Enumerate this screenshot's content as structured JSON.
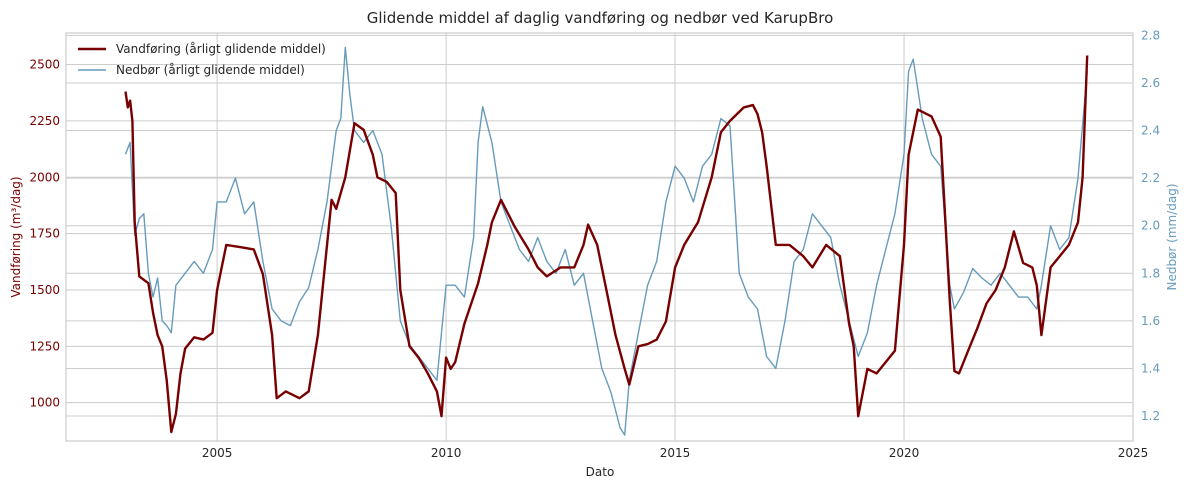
{
  "chart_data": {
    "type": "line",
    "title": "Glidende middel af daglig vandføring og nedbør ved KarupBro",
    "xlabel": "Dato",
    "ylabel_left": "Vandføring (m³/dag)",
    "ylabel_right": "Nedbør (mm/dag)",
    "x_ticks": [
      "2005",
      "2010",
      "2015",
      "2020",
      "2025"
    ],
    "y_left_ticks": [
      "1000",
      "1250",
      "1500",
      "1750",
      "2000",
      "2250",
      "2500"
    ],
    "y_right_ticks": [
      "1.2",
      "1.4",
      "1.6",
      "1.8",
      "2.0",
      "2.2",
      "2.4",
      "2.6",
      "2.8"
    ],
    "xlim": [
      2001.7,
      2025.0
    ],
    "ylim_left": [
      830,
      2640
    ],
    "ylim_right": [
      1.095,
      2.81
    ],
    "grid": true,
    "legend_position": "top-left",
    "colors": {
      "flow": "#780000",
      "rain": "#669bbc",
      "left_axis": "#780000",
      "right_axis": "#669bbc",
      "grid": "#cccccc",
      "text": "#262626"
    },
    "series": [
      {
        "name": "Vandføring (årligt glidende middel)",
        "axis": "left",
        "x": [
          2003.0,
          2003.05,
          2003.1,
          2003.15,
          2003.2,
          2003.3,
          2003.4,
          2003.5,
          2003.6,
          2003.7,
          2003.8,
          2003.9,
          2004.0,
          2004.1,
          2004.2,
          2004.3,
          2004.5,
          2004.7,
          2004.9,
          2005.0,
          2005.1,
          2005.2,
          2005.5,
          2005.8,
          2006.0,
          2006.2,
          2006.3,
          2006.5,
          2006.8,
          2007.0,
          2007.2,
          2007.5,
          2007.6,
          2007.8,
          2008.0,
          2008.2,
          2008.4,
          2008.5,
          2008.7,
          2008.9,
          2009.0,
          2009.2,
          2009.4,
          2009.6,
          2009.8,
          2009.9,
          2010.0,
          2010.1,
          2010.2,
          2010.4,
          2010.7,
          2010.9,
          2011.0,
          2011.2,
          2011.5,
          2011.8,
          2012.0,
          2012.2,
          2012.5,
          2012.8,
          2013.0,
          2013.1,
          2013.3,
          2013.5,
          2013.7,
          2013.9,
          2014.0,
          2014.2,
          2014.4,
          2014.6,
          2014.8,
          2015.0,
          2015.2,
          2015.5,
          2015.8,
          2016.0,
          2016.2,
          2016.5,
          2016.7,
          2016.8,
          2016.9,
          2017.0,
          2017.2,
          2017.5,
          2017.8,
          2018.0,
          2018.3,
          2018.6,
          2018.8,
          2018.9,
          2019.0,
          2019.2,
          2019.4,
          2019.6,
          2019.8,
          2020.0,
          2020.1,
          2020.3,
          2020.6,
          2020.8,
          2021.0,
          2021.1,
          2021.2,
          2021.4,
          2021.6,
          2021.8,
          2022.0,
          2022.2,
          2022.4,
          2022.6,
          2022.8,
          2022.9,
          2023.0,
          2023.2,
          2023.4,
          2023.6,
          2023.8,
          2023.9,
          2024.0
        ],
        "y": [
          2380,
          2310,
          2340,
          2250,
          1800,
          1560,
          1545,
          1530,
          1400,
          1300,
          1250,
          1100,
          870,
          950,
          1130,
          1240,
          1290,
          1280,
          1310,
          1500,
          1600,
          1700,
          1690,
          1680,
          1570,
          1300,
          1020,
          1050,
          1020,
          1050,
          1300,
          1900,
          1860,
          2000,
          2240,
          2210,
          2100,
          2000,
          1980,
          1930,
          1500,
          1250,
          1200,
          1130,
          1050,
          940,
          1200,
          1150,
          1180,
          1350,
          1530,
          1700,
          1800,
          1900,
          1780,
          1680,
          1600,
          1560,
          1600,
          1600,
          1700,
          1790,
          1700,
          1500,
          1300,
          1150,
          1080,
          1250,
          1260,
          1280,
          1360,
          1600,
          1700,
          1800,
          2000,
          2200,
          2250,
          2310,
          2320,
          2280,
          2200,
          2050,
          1700,
          1700,
          1650,
          1600,
          1700,
          1650,
          1350,
          1250,
          940,
          1150,
          1130,
          1180,
          1230,
          1700,
          2100,
          2300,
          2270,
          2180,
          1450,
          1140,
          1130,
          1230,
          1330,
          1440,
          1500,
          1600,
          1760,
          1620,
          1600,
          1520,
          1300,
          1600,
          1650,
          1700,
          1800,
          2000,
          2540
        ]
      },
      {
        "name": "Nedbør (årligt glidende middel)",
        "axis": "right",
        "x": [
          2003.0,
          2003.1,
          2003.2,
          2003.3,
          2003.4,
          2003.5,
          2003.6,
          2003.7,
          2003.8,
          2003.9,
          2004.0,
          2004.1,
          2004.3,
          2004.5,
          2004.7,
          2004.9,
          2005.0,
          2005.2,
          2005.4,
          2005.6,
          2005.8,
          2006.0,
          2006.2,
          2006.4,
          2006.6,
          2006.8,
          2007.0,
          2007.2,
          2007.4,
          2007.6,
          2007.7,
          2007.8,
          2007.9,
          2008.0,
          2008.2,
          2008.4,
          2008.6,
          2008.8,
          2009.0,
          2009.2,
          2009.4,
          2009.6,
          2009.8,
          2010.0,
          2010.2,
          2010.4,
          2010.6,
          2010.7,
          2010.8,
          2011.0,
          2011.2,
          2011.4,
          2011.6,
          2011.8,
          2012.0,
          2012.2,
          2012.4,
          2012.6,
          2012.8,
          2013.0,
          2013.2,
          2013.4,
          2013.6,
          2013.8,
          2013.9,
          2014.0,
          2014.2,
          2014.4,
          2014.6,
          2014.8,
          2015.0,
          2015.2,
          2015.4,
          2015.6,
          2015.8,
          2016.0,
          2016.2,
          2016.4,
          2016.6,
          2016.8,
          2017.0,
          2017.2,
          2017.4,
          2017.6,
          2017.8,
          2018.0,
          2018.2,
          2018.4,
          2018.6,
          2018.8,
          2019.0,
          2019.2,
          2019.4,
          2019.6,
          2019.8,
          2020.0,
          2020.1,
          2020.2,
          2020.4,
          2020.6,
          2020.8,
          2021.0,
          2021.1,
          2021.3,
          2021.5,
          2021.7,
          2021.9,
          2022.1,
          2022.3,
          2022.5,
          2022.7,
          2022.9,
          2023.0,
          2023.2,
          2023.4,
          2023.6,
          2023.8,
          2024.0
        ],
        "y": [
          2.3,
          2.35,
          1.96,
          2.03,
          2.05,
          1.8,
          1.7,
          1.78,
          1.6,
          1.58,
          1.55,
          1.75,
          1.8,
          1.85,
          1.8,
          1.9,
          2.1,
          2.1,
          2.2,
          2.05,
          2.1,
          1.85,
          1.65,
          1.6,
          1.58,
          1.68,
          1.74,
          1.9,
          2.1,
          2.4,
          2.45,
          2.75,
          2.55,
          2.4,
          2.35,
          2.4,
          2.3,
          2.0,
          1.6,
          1.5,
          1.45,
          1.4,
          1.35,
          1.75,
          1.75,
          1.7,
          1.95,
          2.35,
          2.5,
          2.35,
          2.1,
          2.0,
          1.9,
          1.85,
          1.95,
          1.85,
          1.8,
          1.9,
          1.75,
          1.8,
          1.6,
          1.4,
          1.3,
          1.15,
          1.12,
          1.35,
          1.55,
          1.75,
          1.85,
          2.1,
          2.25,
          2.2,
          2.1,
          2.25,
          2.3,
          2.45,
          2.42,
          1.8,
          1.7,
          1.65,
          1.45,
          1.4,
          1.6,
          1.85,
          1.9,
          2.05,
          2.0,
          1.95,
          1.75,
          1.6,
          1.45,
          1.55,
          1.75,
          1.9,
          2.05,
          2.3,
          2.65,
          2.7,
          2.45,
          2.3,
          2.25,
          1.75,
          1.65,
          1.72,
          1.82,
          1.78,
          1.75,
          1.8,
          1.75,
          1.7,
          1.7,
          1.65,
          1.75,
          2.0,
          1.9,
          1.95,
          2.2,
          2.65
        ]
      }
    ]
  }
}
